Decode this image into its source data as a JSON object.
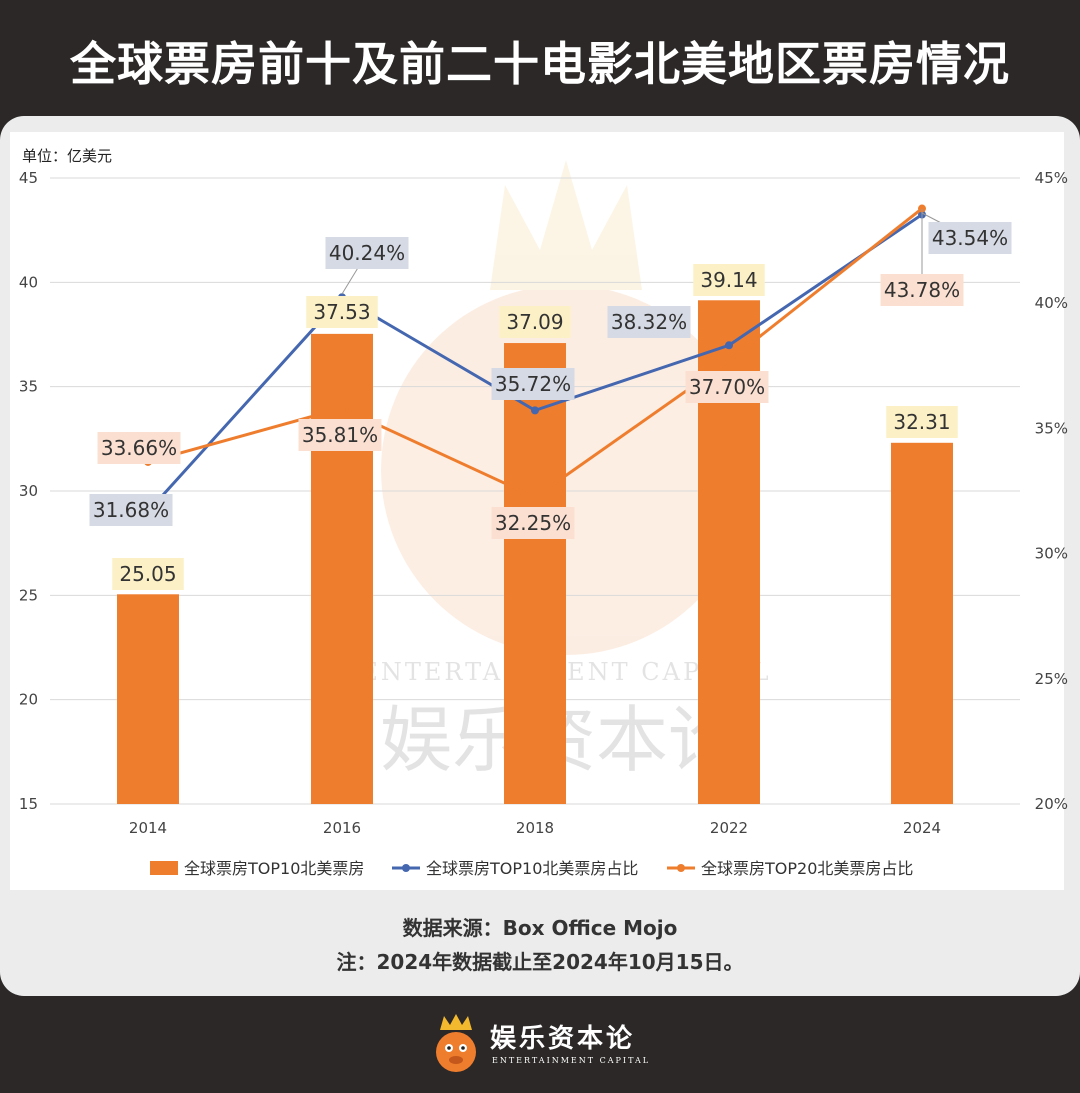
{
  "page": {
    "title": "全球票房前十及前二十电影北美地区票房情况",
    "source": "数据来源：Box Office Mojo",
    "note": "注：2024年数据截止至2024年10月15日。"
  },
  "chart_data": {
    "type": "bar",
    "unit_label": "单位：亿美元",
    "categories": [
      "2014",
      "2016",
      "2018",
      "2022",
      "2024"
    ],
    "y_left": {
      "min": 15,
      "max": 45,
      "ticks": [
        15,
        20,
        25,
        30,
        35,
        40,
        45
      ]
    },
    "y_right": {
      "min": 20,
      "max": 45,
      "ticks": [
        "20%",
        "25%",
        "30%",
        "35%",
        "40%",
        "45%"
      ],
      "tick_values": [
        20,
        25,
        30,
        35,
        40,
        45
      ]
    },
    "series": [
      {
        "name": "全球票房TOP10北美票房",
        "kind": "bar",
        "axis": "left",
        "color": "#ef7d2e",
        "values": [
          25.05,
          37.53,
          37.09,
          39.14,
          32.31
        ],
        "labels": [
          "25.05",
          "37.53",
          "37.09",
          "39.14",
          "32.31"
        ]
      },
      {
        "name": "全球票房TOP10北美票房占比",
        "kind": "line",
        "axis": "right",
        "color": "#4467b0",
        "values": [
          31.68,
          40.24,
          35.72,
          38.32,
          43.54
        ],
        "labels": [
          "31.68%",
          "40.24%",
          "35.72%",
          "38.32%",
          "43.54%"
        ]
      },
      {
        "name": "全球票房TOP20北美票房占比",
        "kind": "line",
        "axis": "right",
        "color": "#ef7d2e",
        "values": [
          33.66,
          35.81,
          32.25,
          37.7,
          43.78
        ],
        "labels": [
          "33.66%",
          "35.81%",
          "32.25%",
          "37.70%",
          "43.78%"
        ]
      }
    ],
    "grid": true,
    "legend_position": "bottom"
  },
  "brand": {
    "name": "娱乐资本论",
    "subtitle": "ENTERTAINMENT CAPITAL",
    "logo_icon": "crowned-mascot-icon"
  },
  "watermark": {
    "text_en": "ENTERTAINMENT CAPITAL",
    "text_cn": "娱乐资本论"
  }
}
